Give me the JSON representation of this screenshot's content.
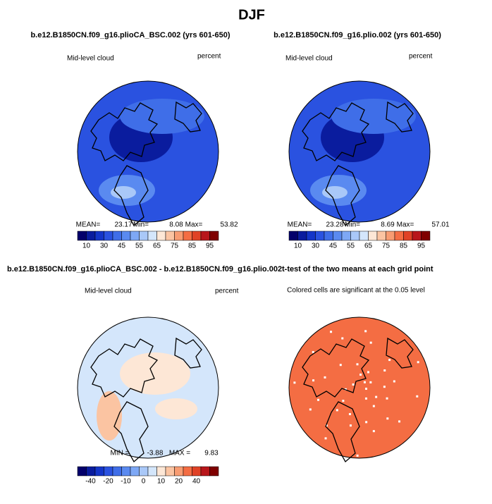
{
  "title": "DJF",
  "palette": [
    "#03006b",
    "#0a1c9e",
    "#1435c8",
    "#2a52e0",
    "#3f6ee8",
    "#5a8af0",
    "#7ea8f5",
    "#a9c8f8",
    "#d4e6fb",
    "#fde7d6",
    "#fbc4a2",
    "#f89c72",
    "#f46d43",
    "#e04226",
    "#b8161b",
    "#7f0000"
  ],
  "panels": [
    {
      "title": "b.e12.B1850CN.f09_g16.plioCA_BSC.002 (yrs 601-650)",
      "left_label": "Mid-level cloud",
      "right_label": "percent",
      "stats": [
        "MEAN=",
        "23.17",
        "Min=",
        "8.08",
        "Max=",
        "53.82"
      ],
      "colorbar_labels": [
        "10",
        "30",
        "45",
        "55",
        "65",
        "75",
        "85",
        "95"
      ]
    },
    {
      "title": "b.e12.B1850CN.f09_g16.plio.002 (yrs 601-650)",
      "left_label": "Mid-level cloud",
      "right_label": "percent",
      "stats": [
        "MEAN=",
        "23.28",
        "Min=",
        "8.69",
        "Max=",
        "57.01"
      ],
      "colorbar_labels": [
        "10",
        "30",
        "45",
        "55",
        "65",
        "75",
        "85",
        "95"
      ]
    },
    {
      "title": "b.e12.B1850CN.f09_g16.plioCA_BSC.002 - b.e12.B1850CN.f09_g16.plio.002",
      "left_label": "Mid-level cloud",
      "right_label": "percent",
      "stats": [
        "MIN =",
        "-3.88",
        "MAX =",
        "9.83"
      ],
      "colorbar_labels": [
        "-40",
        "-20",
        "-10",
        "0",
        "10",
        "20",
        "40"
      ]
    },
    {
      "title": "t-test of the two means at each grid point",
      "subtitle": "Colored cells are significant at the 0.05 level"
    }
  ]
}
